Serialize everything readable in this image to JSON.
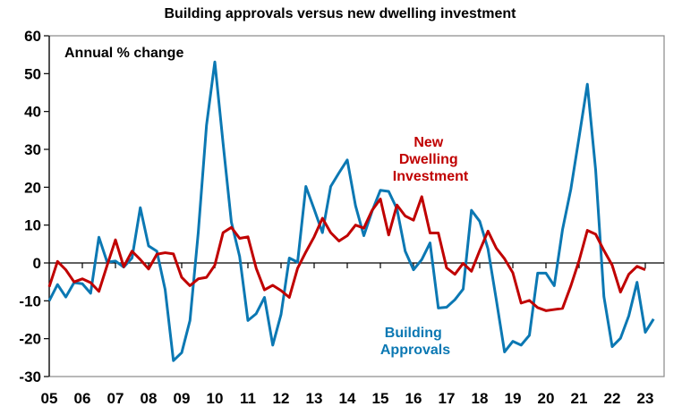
{
  "chart_data": {
    "type": "line",
    "title": "Building approvals versus new dwelling investment",
    "annotation": "Annual % change",
    "xlabel": "",
    "ylabel": "",
    "ylim": [
      -30,
      60
    ],
    "yticks": [
      60,
      50,
      40,
      30,
      20,
      10,
      0,
      -10,
      -20,
      -30
    ],
    "xtick_labels": [
      "05",
      "06",
      "07",
      "08",
      "09",
      "10",
      "11",
      "12",
      "13",
      "14",
      "15",
      "16",
      "17",
      "18",
      "19",
      "20",
      "21",
      "22",
      "23"
    ],
    "x_start": "2005 Q1",
    "frequency": "quarterly",
    "series": [
      {
        "name": "Building Approvals",
        "label_lines": [
          "Building",
          "Approvals"
        ],
        "color": "#0b78b3",
        "values": [
          -10,
          -5.7,
          -9,
          -5.2,
          -5.5,
          -8,
          6.8,
          0.2,
          0.5,
          -1.1,
          1.3,
          14.6,
          4.5,
          3.1,
          -7,
          -25.8,
          -23.7,
          -15.2,
          8,
          36.4,
          53.1,
          31.6,
          10.8,
          1.7,
          -15.2,
          -13.4,
          -9.1,
          -21.7,
          -13.6,
          1.3,
          0.2,
          20.2,
          14.2,
          8,
          20.2,
          23.8,
          27.2,
          15.1,
          7.2,
          13.7,
          19.2,
          18.9,
          14.3,
          3.1,
          -1.8,
          0.9,
          5.3,
          -11.9,
          -11.7,
          -9.7,
          -6.9,
          13.9,
          11,
          3.7,
          -9.7,
          -23.5,
          -20.7,
          -21.7,
          -19.1,
          -2.7,
          -2.7,
          -6,
          8.8,
          19.4,
          33.2,
          47.2,
          24.6,
          -8.9,
          -22.1,
          -19.9,
          -14,
          -5.1,
          -18.3,
          -14.8
        ]
      },
      {
        "name": "New Dwelling Investment",
        "label_lines": [
          "New",
          "Dwelling",
          "Investment"
        ],
        "color": "#c00000",
        "values": [
          -6.3,
          0.4,
          -1.8,
          -5,
          -4.2,
          -5.2,
          -7.5,
          -0.6,
          6.1,
          -1,
          3.1,
          0.9,
          -1.6,
          2.3,
          2.7,
          2.4,
          -3.8,
          -6,
          -4.2,
          -3.8,
          -0.6,
          8,
          9.4,
          6.5,
          6.9,
          -1.4,
          -7.1,
          -5.9,
          -7.3,
          -9.1,
          -1.4,
          2.9,
          6.9,
          11.8,
          8,
          5.8,
          7.2,
          10,
          9.2,
          13.9,
          16.9,
          7.4,
          15.3,
          12.4,
          11.3,
          17.5,
          7.9,
          7.9,
          -1.3,
          -3,
          -0.1,
          -2.2,
          3.3,
          8.4,
          3.9,
          1.1,
          -2.6,
          -10.6,
          -9.9,
          -11.8,
          -12.6,
          -12.3,
          -12,
          -6.1,
          0.6,
          8.6,
          7.6,
          3.3,
          -0.6,
          -7.7,
          -3,
          -0.9,
          -1.8
        ]
      }
    ]
  }
}
